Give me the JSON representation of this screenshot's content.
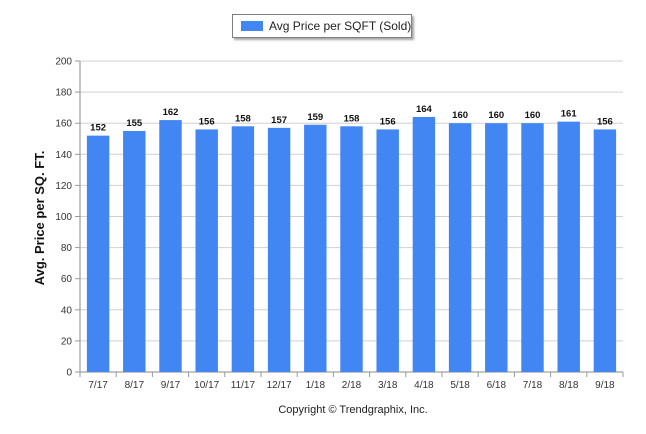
{
  "chart_data": {
    "type": "bar",
    "categories": [
      "7/17",
      "8/17",
      "9/17",
      "10/17",
      "11/17",
      "12/17",
      "1/18",
      "2/18",
      "3/18",
      "4/18",
      "5/18",
      "6/18",
      "7/18",
      "8/18",
      "9/18"
    ],
    "series": [
      {
        "name": "Avg Price per SQFT (Sold)",
        "values": [
          152,
          155,
          162,
          156,
          158,
          157,
          159,
          158,
          156,
          164,
          160,
          160,
          160,
          161,
          156
        ]
      }
    ],
    "ylabel": "Avg. Price per SQ. FT.",
    "xlabel": "",
    "ylim": [
      0,
      200
    ],
    "yticks": [
      0,
      20,
      40,
      60,
      80,
      100,
      120,
      140,
      160,
      180,
      200
    ],
    "grid": true,
    "legend_position": "top-center",
    "bar_color": "#4286f4",
    "credit": "Copyright © Trendgraphix, Inc."
  }
}
